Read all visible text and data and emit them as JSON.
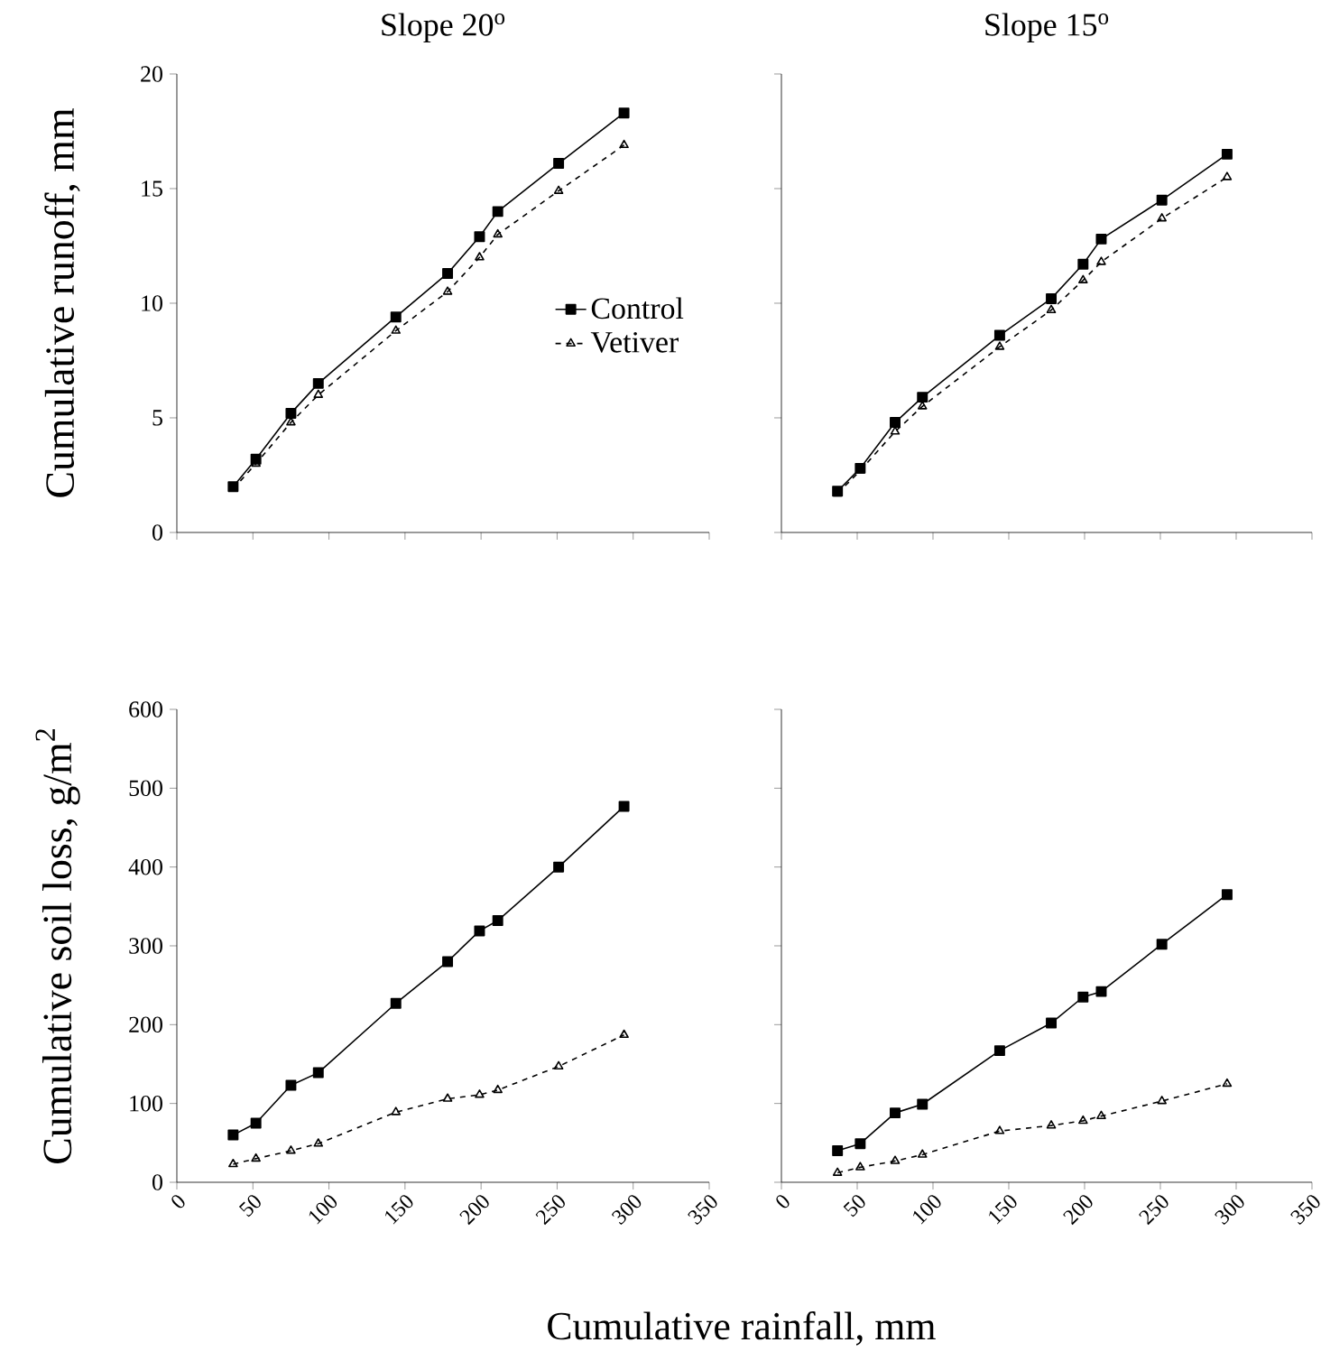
{
  "chart_data": [
    {
      "type": "line",
      "title": "Slope 20$^{o}$",
      "ylabel": "Cumulative runoff, mm",
      "xlim": [
        0,
        350
      ],
      "xticks": [
        0,
        50,
        100,
        150,
        200,
        250,
        300,
        350
      ],
      "ylim": [
        0,
        20
      ],
      "yticks": [
        0,
        5,
        10,
        15,
        20
      ],
      "tick_labels": "y",
      "legend": "right",
      "grid": false,
      "x": [
        37,
        52,
        75,
        93,
        144,
        178,
        199,
        211,
        251,
        294
      ],
      "series": [
        {
          "name": "Control",
          "color": "#000000",
          "marker": "square",
          "line_style": "solid",
          "values": [
            2.0,
            3.2,
            5.2,
            6.5,
            9.4,
            11.3,
            12.9,
            14.0,
            16.1,
            18.3
          ]
        },
        {
          "name": "Vetiver",
          "color": "#000000",
          "marker": "triangle",
          "line_style": "dashed",
          "values": [
            1.9,
            3.0,
            4.8,
            6.0,
            8.8,
            10.5,
            12.0,
            13.0,
            14.9,
            16.9
          ]
        }
      ]
    },
    {
      "type": "line",
      "title": "Slope 15$^{o}$",
      "xlim": [
        0,
        350
      ],
      "xticks": [
        0,
        50,
        100,
        150,
        200,
        250,
        300,
        350
      ],
      "ylim": [
        0,
        20
      ],
      "yticks": [
        0,
        5,
        10,
        15,
        20
      ],
      "tick_labels": false,
      "grid": false,
      "x": [
        37,
        52,
        75,
        93,
        144,
        178,
        199,
        211,
        251,
        294
      ],
      "series": [
        {
          "color": "#000000",
          "marker": "square",
          "line_style": "solid",
          "values": [
            1.8,
            2.8,
            4.8,
            5.9,
            8.6,
            10.2,
            11.7,
            12.8,
            14.5,
            16.5
          ]
        },
        {
          "color": "#000000",
          "marker": "triangle",
          "line_style": "dashed",
          "values": [
            1.7,
            2.7,
            4.4,
            5.5,
            8.1,
            9.7,
            11.0,
            11.8,
            13.7,
            15.5
          ]
        }
      ]
    },
    {
      "type": "line",
      "ylabel": "Cumulative soil loss, g/m$^{2}$",
      "xlabel": "Cumulative rainfall, mm",
      "xlim": [
        0,
        350
      ],
      "xticks": [
        0,
        50,
        100,
        150,
        200,
        250,
        300,
        350
      ],
      "ylim": [
        0,
        600
      ],
      "yticks": [
        0,
        100,
        200,
        300,
        400,
        500,
        600
      ],
      "grid": false,
      "x": [
        37,
        52,
        75,
        93,
        144,
        178,
        199,
        211,
        251,
        294
      ],
      "series": [
        {
          "color": "#000000",
          "marker": "square",
          "line_style": "solid",
          "values": [
            60,
            75,
            123,
            139,
            227,
            280,
            319,
            332,
            400,
            477
          ]
        },
        {
          "color": "#000000",
          "marker": "triangle",
          "line_style": "dashed",
          "values": [
            23,
            30,
            40,
            49,
            89,
            106,
            111,
            117,
            147,
            187
          ]
        }
      ]
    },
    {
      "type": "line",
      "xlim": [
        0,
        350
      ],
      "xticks": [
        0,
        50,
        100,
        150,
        200,
        250,
        300,
        350
      ],
      "ylim": [
        0,
        600
      ],
      "yticks": [
        0,
        100,
        200,
        300,
        400,
        500,
        600
      ],
      "tick_labels": "x",
      "grid": false,
      "x": [
        37,
        52,
        75,
        93,
        144,
        178,
        199,
        211,
        251,
        294
      ],
      "series": [
        {
          "color": "#000000",
          "marker": "square",
          "line_style": "solid",
          "values": [
            40,
            49,
            88,
            99,
            167,
            202,
            235,
            242,
            302,
            365
          ]
        },
        {
          "color": "#000000",
          "marker": "triangle",
          "line_style": "dashed",
          "values": [
            12,
            19,
            27,
            35,
            65,
            72,
            78,
            84,
            103,
            125
          ]
        }
      ]
    }
  ]
}
